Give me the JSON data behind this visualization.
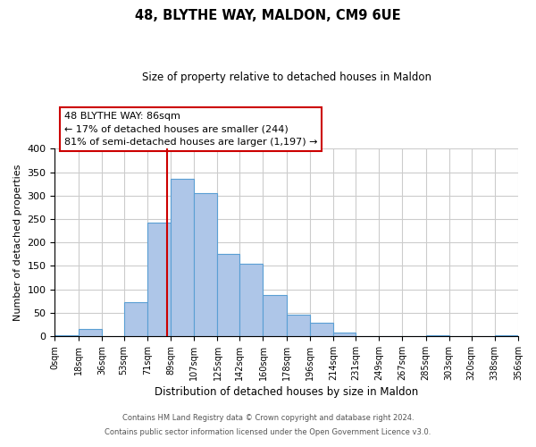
{
  "title": "48, BLYTHE WAY, MALDON, CM9 6UE",
  "subtitle": "Size of property relative to detached houses in Maldon",
  "xlabel": "Distribution of detached houses by size in Maldon",
  "ylabel": "Number of detached properties",
  "bin_labels": [
    "0sqm",
    "18sqm",
    "36sqm",
    "53sqm",
    "71sqm",
    "89sqm",
    "107sqm",
    "125sqm",
    "142sqm",
    "160sqm",
    "178sqm",
    "196sqm",
    "214sqm",
    "231sqm",
    "249sqm",
    "267sqm",
    "285sqm",
    "303sqm",
    "320sqm",
    "338sqm",
    "356sqm"
  ],
  "bin_edges": [
    0,
    18,
    36,
    53,
    71,
    89,
    107,
    125,
    142,
    160,
    178,
    196,
    214,
    231,
    249,
    267,
    285,
    303,
    320,
    338,
    356
  ],
  "bar_heights": [
    2,
    15,
    0,
    73,
    242,
    335,
    305,
    175,
    155,
    88,
    45,
    28,
    7,
    0,
    0,
    0,
    2,
    0,
    0,
    2
  ],
  "bar_color": "#aec6e8",
  "bar_edgecolor": "#5a9fd4",
  "vline_x": 86,
  "vline_color": "#cc0000",
  "annotation_title": "48 BLYTHE WAY: 86sqm",
  "annotation_line1": "← 17% of detached houses are smaller (244)",
  "annotation_line2": "81% of semi-detached houses are larger (1,197) →",
  "annotation_box_color": "#ffffff",
  "annotation_box_edgecolor": "#cc0000",
  "ylim": [
    0,
    400
  ],
  "yticks": [
    0,
    50,
    100,
    150,
    200,
    250,
    300,
    350,
    400
  ],
  "footer1": "Contains HM Land Registry data © Crown copyright and database right 2024.",
  "footer2": "Contains public sector information licensed under the Open Government Licence v3.0.",
  "background_color": "#ffffff",
  "grid_color": "#cccccc"
}
